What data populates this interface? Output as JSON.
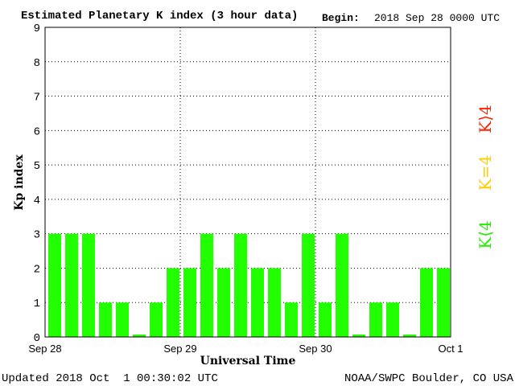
{
  "chart_data": {
    "type": "bar",
    "title": "Estimated Planetary K index (3 hour data)",
    "begin_label": "Begin:",
    "begin_value": "2018 Sep 28 0000 UTC",
    "xlabel": "Universal Time",
    "ylabel": "Kp index",
    "ylim": [
      0,
      9
    ],
    "y_ticks": [
      "0",
      "1",
      "2",
      "3",
      "4",
      "5",
      "6",
      "7",
      "8",
      "9"
    ],
    "x_ticks": [
      "Sep 28",
      "Sep 29",
      "Sep 30",
      "Oct 1"
    ],
    "grid": true,
    "values": [
      3,
      3,
      3,
      1,
      1,
      0.07,
      1,
      2,
      2,
      3,
      2,
      3,
      2,
      2,
      1,
      3,
      1,
      3,
      0.07,
      1,
      1,
      0.07,
      2,
      2
    ],
    "legend": [
      {
        "label": "K⟨4",
        "color": "#22ee00"
      },
      {
        "label": "K=4",
        "color": "#ffcc00"
      },
      {
        "label": "K⟩4",
        "color": "#ff2200"
      }
    ],
    "bar_color": "#22ff00"
  },
  "footer": {
    "updated": "Updated 2018 Oct  1 00:30:02 UTC",
    "source": "NOAA/SWPC Boulder, CO USA"
  }
}
